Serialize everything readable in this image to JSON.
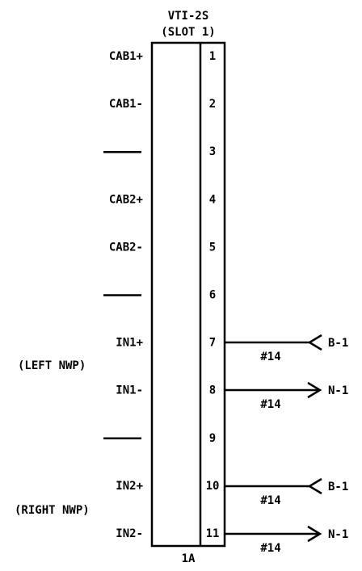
{
  "header": {
    "title": "VTI-2S",
    "slot": "(SLOT 1)"
  },
  "rows": [
    {
      "pin": "1",
      "label": "CAB1+"
    },
    {
      "pin": "2",
      "label": "CAB1-"
    },
    {
      "pin": "3"
    },
    {
      "pin": "4",
      "label": "CAB2+"
    },
    {
      "pin": "5",
      "label": "CAB2-"
    },
    {
      "pin": "6"
    },
    {
      "pin": "7",
      "label": "IN1+"
    },
    {
      "pin": "8",
      "label": "IN1-"
    },
    {
      "pin": "9"
    },
    {
      "pin": "10",
      "label": "IN2+"
    },
    {
      "pin": "11",
      "label": "IN2-"
    }
  ],
  "groups": [
    "(LEFT NWP)",
    "(RIGHT NWP)"
  ],
  "wires": [
    {
      "gauge": "#14",
      "end": "B-1"
    },
    {
      "gauge": "#14",
      "end": "N-1"
    },
    {
      "gauge": "#14",
      "end": "B-1"
    },
    {
      "gauge": "#14",
      "end": "N-1"
    }
  ],
  "footer": "1A"
}
